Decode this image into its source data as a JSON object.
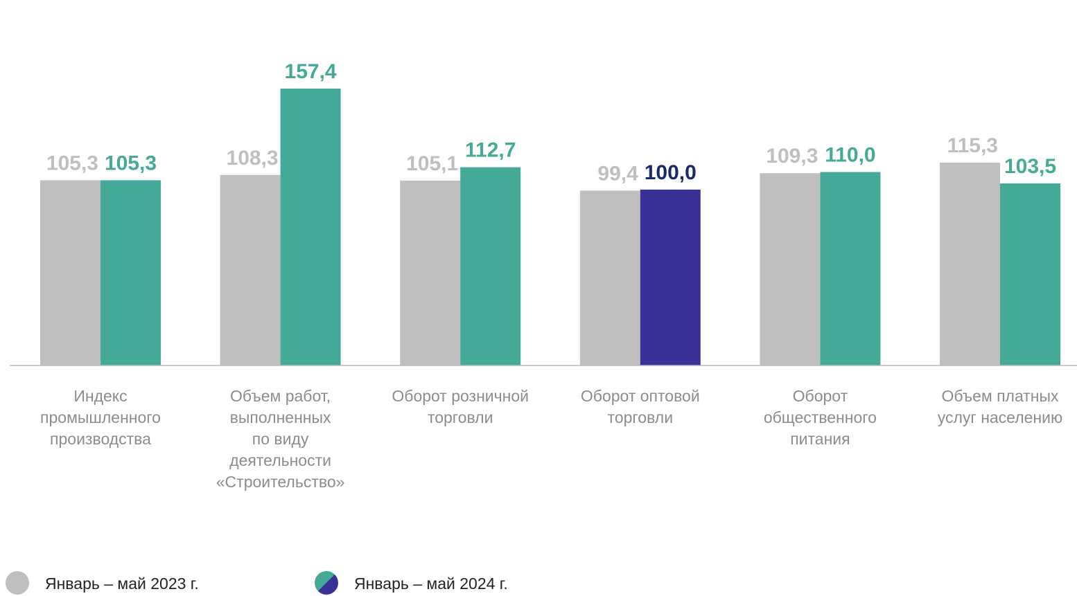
{
  "chart_data": {
    "type": "bar",
    "categories": [
      "Индекс промышленного производства",
      "Объем работ, выполненных по виду деятельности «Строительство»",
      "Оборот розничной торговли",
      "Оборот оптовой торговли",
      "Оборот общественного питания",
      "Объем платных услуг населению"
    ],
    "category_lines": [
      [
        "Индекс",
        "промышленного",
        "производства"
      ],
      [
        "Объем работ,",
        "выполненных",
        "по виду",
        "деятельности",
        "«Строительство»"
      ],
      [
        "Оборот розничной",
        "торговли"
      ],
      [
        "Оборот оптовой",
        "торговли"
      ],
      [
        "Оборот",
        "общественного",
        "питания"
      ],
      [
        "Объем платных",
        "услуг населению"
      ]
    ],
    "series": [
      {
        "name": "Январь – май 2023 г.",
        "values": [
          105.3,
          108.3,
          105.1,
          99.4,
          109.3,
          115.3
        ],
        "labels": [
          "105,3",
          "108,3",
          "105,1",
          "99,4",
          "109,3",
          "115,3"
        ],
        "color": "#bfbfbf",
        "label_color": "#bfbfbf"
      },
      {
        "name": "Январь – май 2024 г.",
        "values": [
          105.3,
          157.4,
          112.7,
          100.0,
          110.0,
          103.5
        ],
        "labels": [
          "105,3",
          "157,4",
          "112,7",
          "100,0",
          "110,0",
          "103,5"
        ],
        "colors": [
          "#44a997",
          "#44a997",
          "#44a997",
          "#3a3196",
          "#44a997",
          "#44a997"
        ],
        "label_colors": [
          "#44a997",
          "#44a997",
          "#44a997",
          "#1a2a66",
          "#44a997",
          "#44a997"
        ]
      }
    ],
    "ylim": [
      0,
      170
    ],
    "legend_position": "bottom-left",
    "grid": false,
    "axis_color": "#bfbfbf"
  }
}
